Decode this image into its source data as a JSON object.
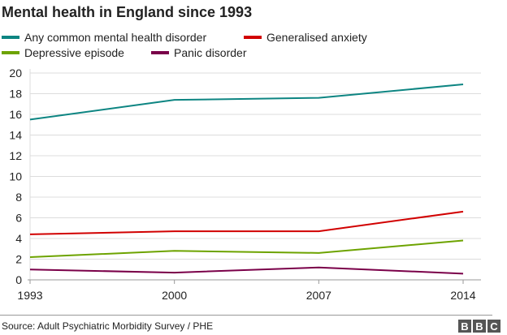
{
  "chart_data": {
    "type": "line",
    "title": "Mental health in England since 1993",
    "x": [
      "1993",
      "2000",
      "2007",
      "2014"
    ],
    "ylim": [
      0,
      20
    ],
    "yticks": [
      0,
      2,
      4,
      6,
      8,
      10,
      12,
      14,
      16,
      18,
      20
    ],
    "grid": true,
    "legend_placement": "top",
    "series": [
      {
        "name": "Any common mental health disorder",
        "color": "#0d8582",
        "values": [
          15.5,
          17.4,
          17.6,
          18.9
        ]
      },
      {
        "name": "Generalised anxiety",
        "color": "#d10000",
        "values": [
          4.4,
          4.7,
          4.7,
          6.6
        ]
      },
      {
        "name": "Depressive episode",
        "color": "#6da300",
        "values": [
          2.2,
          2.8,
          2.6,
          3.8
        ]
      },
      {
        "name": "Panic disorder",
        "color": "#7a0049",
        "values": [
          1.0,
          0.7,
          1.2,
          0.6
        ]
      }
    ],
    "source": "Source: Adult Psychiatric Morbidity Survey / PHE"
  },
  "logo": "BBC"
}
